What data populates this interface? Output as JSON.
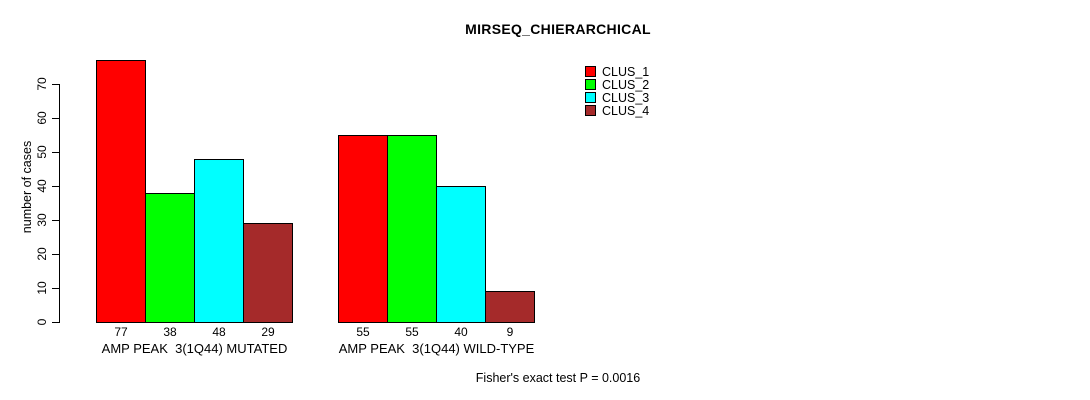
{
  "chart_data": {
    "type": "bar",
    "title": "MIRSEQ_CHIERARCHICAL",
    "ylabel": "number of cases",
    "xlabel": "",
    "annotation": "Fisher's exact test P = 0.0016",
    "grid": false,
    "legend_position": "top-right",
    "yticks": [
      0,
      10,
      20,
      30,
      40,
      50,
      60,
      70
    ],
    "ylim": [
      0,
      77
    ],
    "series": [
      {
        "name": "CLUS_1",
        "color": "#FF0000"
      },
      {
        "name": "CLUS_2",
        "color": "#00FF00"
      },
      {
        "name": "CLUS_3",
        "color": "#00FFFF"
      },
      {
        "name": "CLUS_4",
        "color": "#A52A2A"
      }
    ],
    "groups": [
      {
        "label": "AMP PEAK  3(1Q44) MUTATED",
        "values": [
          77,
          38,
          48,
          29
        ]
      },
      {
        "label": "AMP PEAK  3(1Q44) WILD-TYPE",
        "values": [
          55,
          55,
          40,
          9
        ]
      }
    ]
  },
  "colors": {
    "background": "#FFFFFF",
    "axis": "#000000",
    "text": "#000000"
  }
}
